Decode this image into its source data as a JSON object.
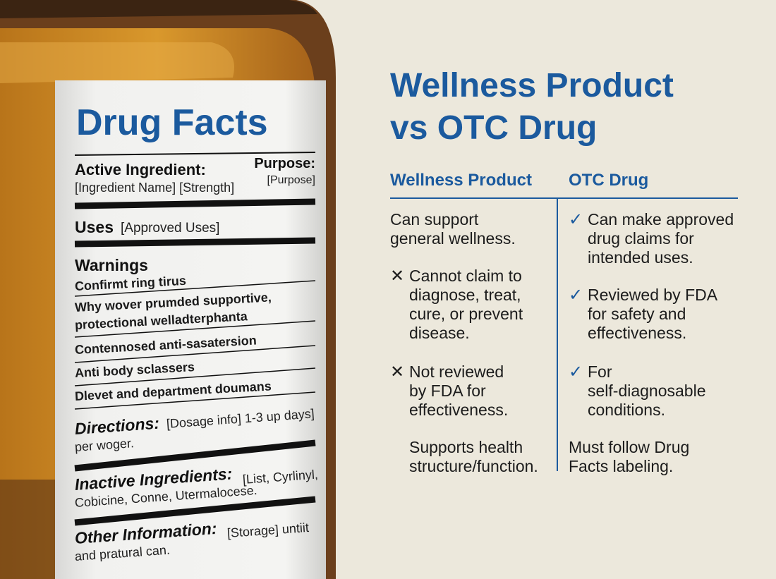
{
  "label": {
    "title": "Drug Facts",
    "active_heading": "Active Ingredient:",
    "active_text": "[Ingredient Name] [Strength]",
    "purpose_heading": "Purpose:",
    "purpose_text": "[Purpose]",
    "uses_heading": "Uses",
    "uses_text": "[Approved Uses]",
    "warnings_heading": "Warnings",
    "warnings": [
      [
        "Confirmt ring tirus"
      ],
      [
        "Why wover prumded supportive,",
        "protectional welladterphanta"
      ],
      [
        "Contennosed anti-sasatersion"
      ],
      [
        "Anti body sclassers"
      ],
      [
        "Dlevet and department doumans"
      ]
    ],
    "directions_heading": "Directions:",
    "directions_text": [
      "[Dosage info] 1-3 up days]",
      "per woger."
    ],
    "inactive_heading": "Inactive Ingredients:",
    "inactive_text": [
      "[List, Cyrlinyl,",
      "Cobicine, Conne, Utermalocese."
    ],
    "other_heading": "Other Information:",
    "other_text": [
      "[Storage] untiit",
      "and pratural can."
    ]
  },
  "comparison": {
    "title": [
      "Wellness Product",
      "vs OTC Drug"
    ],
    "columns": [
      "Wellness Product",
      "OTC Drug"
    ],
    "wellness": [
      {
        "mark": "",
        "lines": [
          "Can support",
          "general wellness."
        ]
      },
      {
        "mark": "✕",
        "lines": [
          "Cannot claim to",
          "diagnose, treat,",
          "cure, or prevent",
          "disease."
        ]
      },
      {
        "mark": "✕",
        "lines": [
          "Not reviewed",
          "by FDA for",
          "effectiveness."
        ]
      },
      {
        "mark": "",
        "lines": [
          "Supports health",
          "structure/function."
        ]
      }
    ],
    "otc": [
      {
        "mark": "✓",
        "lines": [
          "Can make approved",
          "drug claims for",
          "intended uses."
        ]
      },
      {
        "mark": "✓",
        "lines": [
          "Reviewed by FDA",
          "for safety and",
          "effectiveness."
        ]
      },
      {
        "mark": "✓",
        "lines": [
          "For",
          "self-diagnosable",
          "conditions."
        ]
      },
      {
        "mark": "",
        "lines": [
          "Must follow Drug",
          "Facts labeling."
        ]
      }
    ]
  }
}
